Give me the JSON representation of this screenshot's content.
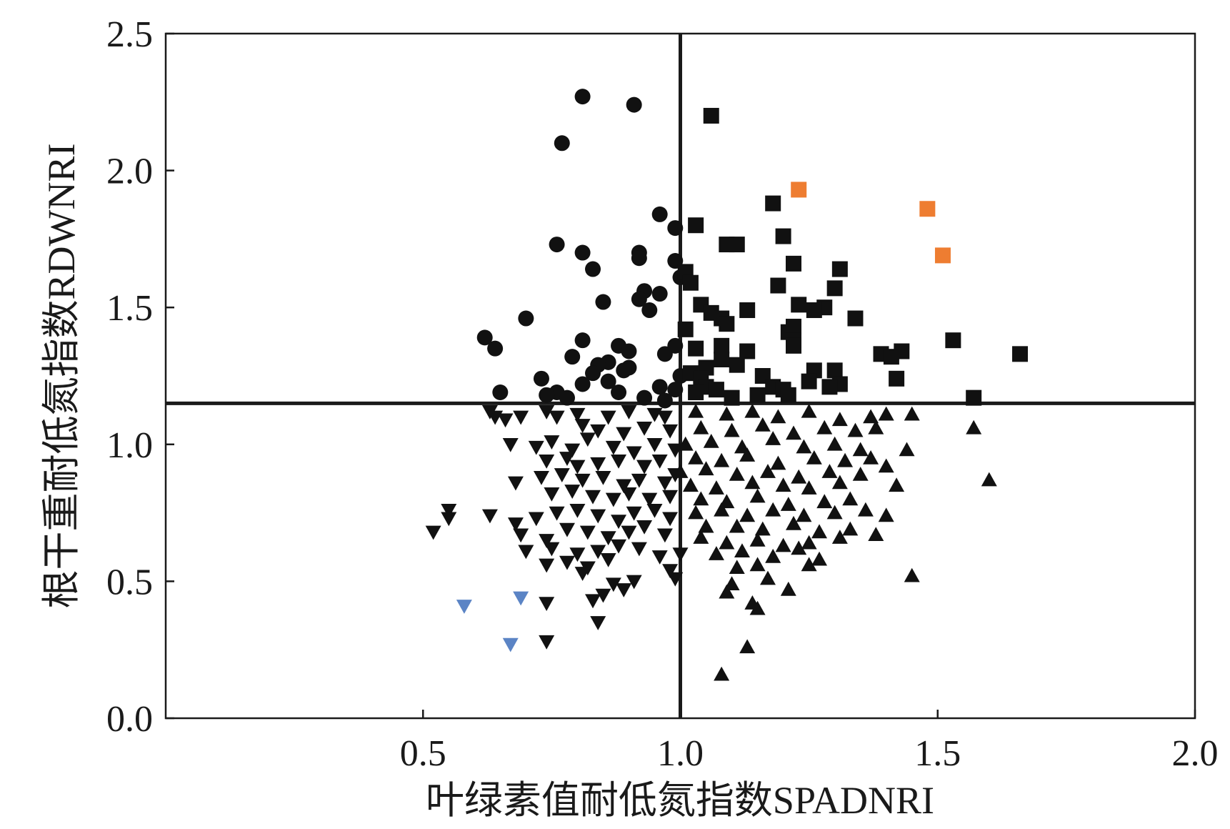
{
  "chart_data": {
    "type": "scatter",
    "xlabel": "叶绿素值耐低氮指数SPADNRI",
    "ylabel": "根干重耐低氮指数RDWNRI",
    "xlim": [
      0,
      2.0
    ],
    "ylim": [
      0,
      2.5
    ],
    "x_ticks": [
      "0.5",
      "1.0",
      "1.5",
      "2.0"
    ],
    "y_ticks": [
      "0.0",
      "0.5",
      "1.0",
      "1.5",
      "2.0",
      "2.5"
    ],
    "x_tick_values": [
      0.5,
      1.0,
      1.5,
      2.0
    ],
    "y_tick_values": [
      0.0,
      0.5,
      1.0,
      1.5,
      2.0,
      2.5
    ],
    "reference_lines": {
      "vertical_x": 1.0,
      "horizontal_y": 1.15
    },
    "grid": false,
    "legend": "none",
    "colors": {
      "black": "#111111",
      "orange": "#ee7d31",
      "blue": "#5b84c5"
    },
    "series": [
      {
        "marker": "circle",
        "color": "#111111",
        "points": [
          [
            0.81,
            2.27
          ],
          [
            0.91,
            2.24
          ],
          [
            0.77,
            2.1
          ],
          [
            0.96,
            1.84
          ],
          [
            0.99,
            1.79
          ],
          [
            0.76,
            1.73
          ],
          [
            0.81,
            1.7
          ],
          [
            0.92,
            1.7
          ],
          [
            0.92,
            1.68
          ],
          [
            0.99,
            1.67
          ],
          [
            0.83,
            1.64
          ],
          [
            1.0,
            1.61
          ],
          [
            0.93,
            1.56
          ],
          [
            0.96,
            1.55
          ],
          [
            0.92,
            1.53
          ],
          [
            0.85,
            1.52
          ],
          [
            0.94,
            1.49
          ],
          [
            0.7,
            1.46
          ],
          [
            0.62,
            1.39
          ],
          [
            0.81,
            1.38
          ],
          [
            0.64,
            1.35
          ],
          [
            0.99,
            1.36
          ],
          [
            0.88,
            1.36
          ],
          [
            0.9,
            1.34
          ],
          [
            0.97,
            1.33
          ],
          [
            0.79,
            1.32
          ],
          [
            0.86,
            1.3
          ],
          [
            0.84,
            1.29
          ],
          [
            0.9,
            1.28
          ],
          [
            0.89,
            1.27
          ],
          [
            0.83,
            1.26
          ],
          [
            1.0,
            1.25
          ],
          [
            0.73,
            1.24
          ],
          [
            0.86,
            1.23
          ],
          [
            0.81,
            1.22
          ],
          [
            0.96,
            1.21
          ],
          [
            0.99,
            1.2
          ],
          [
            0.88,
            1.19
          ],
          [
            0.65,
            1.19
          ],
          [
            0.76,
            1.19
          ],
          [
            0.74,
            1.18
          ],
          [
            0.78,
            1.17
          ],
          [
            0.93,
            1.17
          ],
          [
            0.97,
            1.16
          ]
        ]
      },
      {
        "marker": "square",
        "color": "#111111",
        "points": [
          [
            1.06,
            2.2
          ],
          [
            1.18,
            1.88
          ],
          [
            1.03,
            1.8
          ],
          [
            1.2,
            1.76
          ],
          [
            1.09,
            1.73
          ],
          [
            1.11,
            1.73
          ],
          [
            1.22,
            1.66
          ],
          [
            1.31,
            1.64
          ],
          [
            1.01,
            1.63
          ],
          [
            1.02,
            1.59
          ],
          [
            1.19,
            1.58
          ],
          [
            1.3,
            1.57
          ],
          [
            1.04,
            1.51
          ],
          [
            1.23,
            1.51
          ],
          [
            1.28,
            1.5
          ],
          [
            1.26,
            1.49
          ],
          [
            1.13,
            1.49
          ],
          [
            1.06,
            1.48
          ],
          [
            1.08,
            1.46
          ],
          [
            1.09,
            1.44
          ],
          [
            1.34,
            1.46
          ],
          [
            1.22,
            1.43
          ],
          [
            1.21,
            1.41
          ],
          [
            1.01,
            1.42
          ],
          [
            1.22,
            1.38
          ],
          [
            1.53,
            1.38
          ],
          [
            1.22,
            1.36
          ],
          [
            1.03,
            1.35
          ],
          [
            1.08,
            1.36
          ],
          [
            1.13,
            1.34
          ],
          [
            1.43,
            1.34
          ],
          [
            1.39,
            1.33
          ],
          [
            1.41,
            1.32
          ],
          [
            1.66,
            1.33
          ],
          [
            1.08,
            1.31
          ],
          [
            1.11,
            1.29
          ],
          [
            1.05,
            1.28
          ],
          [
            1.26,
            1.27
          ],
          [
            1.3,
            1.27
          ],
          [
            1.02,
            1.26
          ],
          [
            1.16,
            1.25
          ],
          [
            1.04,
            1.24
          ],
          [
            1.25,
            1.23
          ],
          [
            1.42,
            1.24
          ],
          [
            1.31,
            1.22
          ],
          [
            1.05,
            1.21
          ],
          [
            1.18,
            1.21
          ],
          [
            1.29,
            1.21
          ],
          [
            1.07,
            1.2
          ],
          [
            1.2,
            1.2
          ],
          [
            1.03,
            1.19
          ],
          [
            1.15,
            1.18
          ],
          [
            1.21,
            1.18
          ],
          [
            1.57,
            1.17
          ],
          [
            1.1,
            1.17
          ]
        ]
      },
      {
        "marker": "square",
        "color": "#ee7d31",
        "points": [
          [
            1.23,
            1.93
          ],
          [
            1.48,
            1.86
          ],
          [
            1.51,
            1.69
          ]
        ]
      },
      {
        "marker": "triangle-down",
        "color": "#111111",
        "points": [
          [
            0.63,
            1.12
          ],
          [
            0.64,
            1.1
          ],
          [
            0.66,
            1.09
          ],
          [
            0.69,
            1.1
          ],
          [
            0.74,
            1.12
          ],
          [
            0.76,
            1.1
          ],
          [
            0.8,
            1.11
          ],
          [
            0.86,
            1.1
          ],
          [
            0.9,
            1.12
          ],
          [
            0.95,
            1.11
          ],
          [
            0.97,
            1.1
          ],
          [
            0.81,
            1.07
          ],
          [
            0.84,
            1.05
          ],
          [
            0.89,
            1.04
          ],
          [
            0.93,
            1.06
          ],
          [
            0.98,
            1.05
          ],
          [
            0.67,
            1.0
          ],
          [
            0.72,
            0.99
          ],
          [
            0.75,
            1.01
          ],
          [
            0.79,
            0.98
          ],
          [
            0.82,
            1.02
          ],
          [
            0.87,
            0.99
          ],
          [
            0.91,
            0.97
          ],
          [
            0.95,
            1.0
          ],
          [
            0.99,
            0.98
          ],
          [
            0.74,
            0.94
          ],
          [
            0.78,
            0.95
          ],
          [
            0.8,
            0.92
          ],
          [
            0.84,
            0.93
          ],
          [
            0.88,
            0.94
          ],
          [
            0.93,
            0.92
          ],
          [
            0.96,
            0.94
          ],
          [
            0.68,
            0.86
          ],
          [
            0.73,
            0.88
          ],
          [
            0.77,
            0.89
          ],
          [
            0.81,
            0.87
          ],
          [
            0.85,
            0.88
          ],
          [
            0.89,
            0.85
          ],
          [
            0.92,
            0.87
          ],
          [
            0.97,
            0.86
          ],
          [
            0.99,
            0.89
          ],
          [
            0.75,
            0.82
          ],
          [
            0.79,
            0.83
          ],
          [
            0.83,
            0.81
          ],
          [
            0.87,
            0.8
          ],
          [
            0.9,
            0.82
          ],
          [
            0.94,
            0.8
          ],
          [
            0.98,
            0.81
          ],
          [
            0.55,
            0.76
          ],
          [
            0.55,
            0.73
          ],
          [
            0.63,
            0.74
          ],
          [
            0.68,
            0.71
          ],
          [
            0.72,
            0.73
          ],
          [
            0.76,
            0.75
          ],
          [
            0.8,
            0.76
          ],
          [
            0.84,
            0.74
          ],
          [
            0.88,
            0.72
          ],
          [
            0.91,
            0.75
          ],
          [
            0.95,
            0.76
          ],
          [
            0.98,
            0.73
          ],
          [
            0.52,
            0.68
          ],
          [
            0.69,
            0.67
          ],
          [
            0.74,
            0.65
          ],
          [
            0.78,
            0.69
          ],
          [
            0.82,
            0.68
          ],
          [
            0.86,
            0.66
          ],
          [
            0.9,
            0.68
          ],
          [
            0.93,
            0.7
          ],
          [
            0.97,
            0.67
          ],
          [
            0.7,
            0.61
          ],
          [
            0.75,
            0.62
          ],
          [
            0.8,
            0.6
          ],
          [
            0.84,
            0.61
          ],
          [
            0.88,
            0.63
          ],
          [
            0.92,
            0.62
          ],
          [
            0.96,
            0.59
          ],
          [
            1.0,
            0.6
          ],
          [
            0.74,
            0.56
          ],
          [
            0.78,
            0.57
          ],
          [
            0.82,
            0.55
          ],
          [
            0.86,
            0.58
          ],
          [
            0.98,
            0.54
          ],
          [
            0.99,
            0.51
          ],
          [
            0.81,
            0.53
          ],
          [
            0.87,
            0.49
          ],
          [
            0.91,
            0.5
          ],
          [
            0.89,
            0.47
          ],
          [
            0.85,
            0.45
          ],
          [
            0.83,
            0.43
          ],
          [
            0.74,
            0.42
          ],
          [
            0.84,
            0.35
          ],
          [
            0.74,
            0.28
          ]
        ]
      },
      {
        "marker": "triangle-down",
        "color": "#5b84c5",
        "points": [
          [
            0.58,
            0.41
          ],
          [
            0.69,
            0.44
          ],
          [
            0.67,
            0.27
          ]
        ]
      },
      {
        "marker": "triangle-up",
        "color": "#111111",
        "points": [
          [
            1.03,
            1.12
          ],
          [
            1.09,
            1.11
          ],
          [
            1.14,
            1.12
          ],
          [
            1.19,
            1.1
          ],
          [
            1.25,
            1.12
          ],
          [
            1.31,
            1.09
          ],
          [
            1.37,
            1.1
          ],
          [
            1.4,
            1.11
          ],
          [
            1.45,
            1.11
          ],
          [
            1.04,
            1.06
          ],
          [
            1.1,
            1.05
          ],
          [
            1.16,
            1.07
          ],
          [
            1.22,
            1.04
          ],
          [
            1.28,
            1.06
          ],
          [
            1.34,
            1.05
          ],
          [
            1.38,
            1.06
          ],
          [
            1.57,
            1.06
          ],
          [
            1.01,
            1.0
          ],
          [
            1.06,
            1.01
          ],
          [
            1.12,
            0.99
          ],
          [
            1.18,
            1.02
          ],
          [
            1.24,
            0.99
          ],
          [
            1.3,
            1.0
          ],
          [
            1.35,
            0.98
          ],
          [
            1.44,
            0.98
          ],
          [
            1.03,
            0.95
          ],
          [
            1.08,
            0.94
          ],
          [
            1.13,
            0.96
          ],
          [
            1.19,
            0.93
          ],
          [
            1.26,
            0.95
          ],
          [
            1.32,
            0.94
          ],
          [
            1.37,
            0.95
          ],
          [
            1.0,
            0.9
          ],
          [
            1.05,
            0.91
          ],
          [
            1.11,
            0.89
          ],
          [
            1.17,
            0.9
          ],
          [
            1.23,
            0.88
          ],
          [
            1.29,
            0.9
          ],
          [
            1.35,
            0.89
          ],
          [
            1.4,
            0.92
          ],
          [
            1.02,
            0.85
          ],
          [
            1.07,
            0.84
          ],
          [
            1.14,
            0.86
          ],
          [
            1.2,
            0.85
          ],
          [
            1.25,
            0.84
          ],
          [
            1.31,
            0.86
          ],
          [
            1.42,
            0.85
          ],
          [
            1.6,
            0.87
          ],
          [
            1.04,
            0.8
          ],
          [
            1.09,
            0.79
          ],
          [
            1.15,
            0.81
          ],
          [
            1.21,
            0.78
          ],
          [
            1.28,
            0.79
          ],
          [
            1.33,
            0.8
          ],
          [
            1.03,
            0.75
          ],
          [
            1.08,
            0.76
          ],
          [
            1.13,
            0.74
          ],
          [
            1.18,
            0.76
          ],
          [
            1.24,
            0.74
          ],
          [
            1.3,
            0.75
          ],
          [
            1.36,
            0.76
          ],
          [
            1.4,
            0.74
          ],
          [
            1.05,
            0.7
          ],
          [
            1.11,
            0.7
          ],
          [
            1.16,
            0.69
          ],
          [
            1.22,
            0.71
          ],
          [
            1.27,
            0.68
          ],
          [
            1.33,
            0.69
          ],
          [
            1.38,
            0.67
          ],
          [
            1.04,
            0.66
          ],
          [
            1.09,
            0.64
          ],
          [
            1.15,
            0.65
          ],
          [
            1.2,
            0.63
          ],
          [
            1.25,
            0.64
          ],
          [
            1.31,
            0.66
          ],
          [
            1.07,
            0.6
          ],
          [
            1.12,
            0.61
          ],
          [
            1.18,
            0.59
          ],
          [
            1.23,
            0.62
          ],
          [
            1.27,
            0.58
          ],
          [
            1.11,
            0.55
          ],
          [
            1.15,
            0.56
          ],
          [
            1.25,
            0.56
          ],
          [
            1.45,
            0.52
          ],
          [
            1.1,
            0.49
          ],
          [
            1.17,
            0.51
          ],
          [
            1.09,
            0.46
          ],
          [
            1.21,
            0.47
          ],
          [
            1.14,
            0.42
          ],
          [
            1.15,
            0.4
          ],
          [
            1.13,
            0.26
          ],
          [
            1.08,
            0.16
          ]
        ]
      }
    ]
  }
}
